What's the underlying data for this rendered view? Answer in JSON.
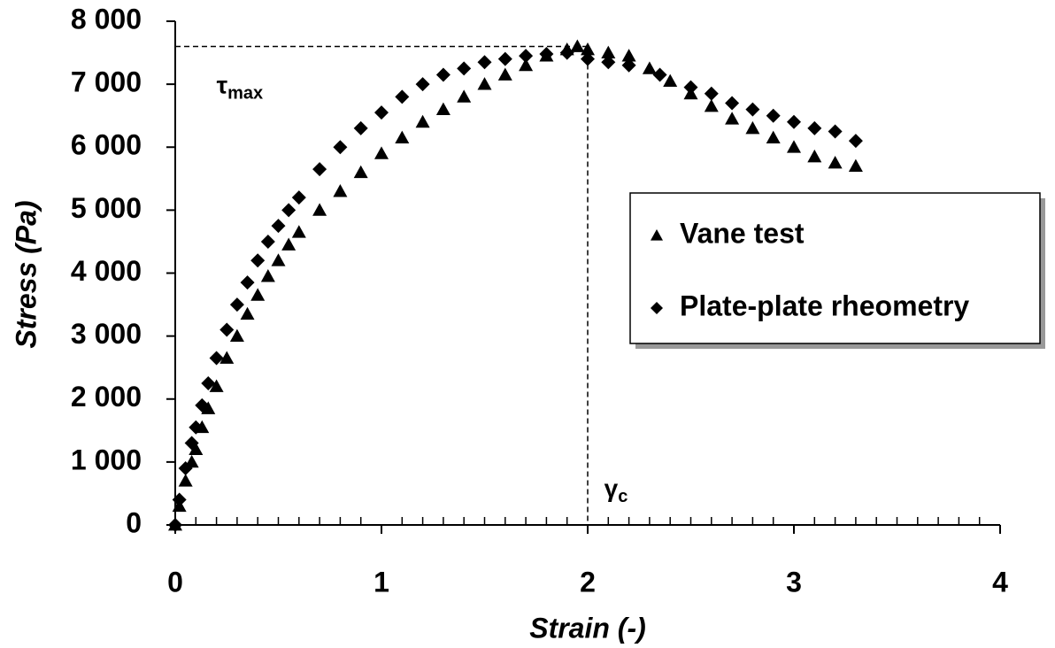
{
  "chart_data": {
    "type": "scatter",
    "x_label": "Strain (-)",
    "y_label": "Stress (Pa)",
    "xlim": [
      0,
      4
    ],
    "ylim": [
      0,
      8000
    ],
    "xticks": [
      0,
      1,
      2,
      3,
      4
    ],
    "xminorticks": [
      0.1,
      0.2,
      0.3,
      0.4,
      0.5,
      0.6,
      0.7,
      0.8,
      0.9,
      1.1,
      1.2,
      1.3,
      1.4,
      1.5,
      1.6,
      1.7,
      1.8,
      1.9,
      2.1,
      2.2,
      2.3,
      2.4,
      2.5,
      2.6,
      2.7,
      2.8,
      2.9,
      3.1,
      3.2,
      3.3,
      3.4,
      3.5,
      3.6,
      3.7,
      3.8,
      3.9
    ],
    "yticks": [
      0,
      {
        "value": 1000,
        "label": "1 000"
      },
      {
        "value": 2000,
        "label": "2 000"
      },
      {
        "value": 3000,
        "label": "3 000"
      },
      {
        "value": 4000,
        "label": "4 000"
      },
      {
        "value": 5000,
        "label": "5 000"
      },
      {
        "value": 6000,
        "label": "6 000"
      },
      {
        "value": 7000,
        "label": "7 000"
      },
      {
        "value": 8000,
        "label": "8 000"
      }
    ],
    "legend": "right",
    "reference_lines": {
      "x": 2,
      "y": 7600
    },
    "annotations": [
      {
        "symbol": "τ",
        "sub": "max",
        "x": 0.2,
        "y": 6950
      },
      {
        "symbol": "γ",
        "sub": "c",
        "x": 2.08,
        "y": 550
      }
    ],
    "series": [
      {
        "name": "Vane test",
        "color": "#000000",
        "marker": "triangle",
        "x": [
          0,
          0.02,
          0.05,
          0.08,
          0.1,
          0.13,
          0.16,
          0.2,
          0.25,
          0.3,
          0.35,
          0.4,
          0.45,
          0.5,
          0.55,
          0.6,
          0.7,
          0.8,
          0.9,
          1.0,
          1.1,
          1.2,
          1.3,
          1.4,
          1.5,
          1.6,
          1.7,
          1.8,
          1.9,
          1.95,
          2.0,
          2.1,
          2.2,
          2.3,
          2.4,
          2.5,
          2.6,
          2.7,
          2.8,
          2.9,
          3.0,
          3.1,
          3.2,
          3.3
        ],
        "values": [
          0,
          300,
          700,
          1000,
          1200,
          1550,
          1850,
          2200,
          2650,
          3000,
          3350,
          3650,
          3950,
          4200,
          4450,
          4650,
          5000,
          5300,
          5600,
          5900,
          6150,
          6400,
          6600,
          6800,
          7000,
          7150,
          7300,
          7450,
          7550,
          7600,
          7550,
          7500,
          7450,
          7250,
          7050,
          6850,
          6650,
          6450,
          6300,
          6150,
          6000,
          5850,
          5750,
          5700
        ]
      },
      {
        "name": "Plate-plate rheometry",
        "color": "#000000",
        "marker": "diamond",
        "x": [
          0,
          0.02,
          0.05,
          0.08,
          0.1,
          0.13,
          0.16,
          0.2,
          0.25,
          0.3,
          0.35,
          0.4,
          0.45,
          0.5,
          0.55,
          0.6,
          0.7,
          0.8,
          0.9,
          1.0,
          1.1,
          1.2,
          1.3,
          1.4,
          1.5,
          1.6,
          1.7,
          1.8,
          1.9,
          2.0,
          2.1,
          2.2,
          2.35,
          2.5,
          2.6,
          2.7,
          2.8,
          2.9,
          3.0,
          3.1,
          3.2,
          3.3
        ],
        "values": [
          0,
          400,
          900,
          1300,
          1550,
          1900,
          2250,
          2650,
          3100,
          3500,
          3850,
          4200,
          4500,
          4750,
          5000,
          5200,
          5650,
          6000,
          6300,
          6550,
          6800,
          7000,
          7150,
          7250,
          7350,
          7400,
          7450,
          7480,
          7500,
          7400,
          7350,
          7300,
          7150,
          6950,
          6850,
          6700,
          6600,
          6500,
          6400,
          6300,
          6250,
          6100
        ]
      }
    ]
  }
}
